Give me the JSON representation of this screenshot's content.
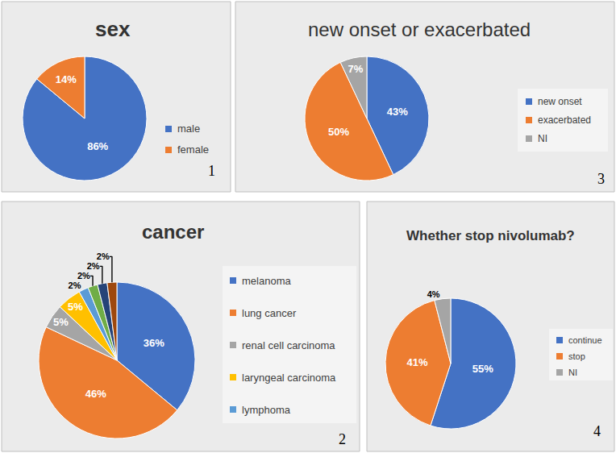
{
  "chart_data": [
    {
      "type": "pie",
      "title": "sex",
      "categories": [
        "male",
        "female"
      ],
      "values": [
        86,
        14
      ],
      "value_labels": [
        "86%",
        "14%"
      ],
      "colors": [
        "#4472c4",
        "#ed7d31"
      ],
      "data_labels": true,
      "legend": "right",
      "annotations": [
        "1"
      ]
    },
    {
      "type": "pie",
      "title": "new onset or exacerbated",
      "categories": [
        "new onset",
        "exacerbated",
        "NI"
      ],
      "values": [
        43,
        50,
        7
      ],
      "value_labels": [
        "43%",
        "50%",
        "7%"
      ],
      "colors": [
        "#4472c4",
        "#ed7d31",
        "#a5a5a5"
      ],
      "data_labels": true,
      "legend": "right",
      "annotations": [
        "3"
      ]
    },
    {
      "type": "pie",
      "title": "cancer",
      "categories": [
        "melanoma",
        "lung cancer",
        "renal cell carcinoma",
        "laryngeal carcinoma",
        "lymphoma",
        null,
        null,
        null
      ],
      "values": [
        36,
        46,
        5,
        5,
        2,
        2,
        2,
        2
      ],
      "value_labels": [
        "36%",
        "46%",
        "5%",
        "5%",
        "2%",
        "2%",
        "2%",
        "2%"
      ],
      "colors": [
        "#4472c4",
        "#ed7d31",
        "#a5a5a5",
        "#ffc000",
        "#5b9bd5",
        "#70ad47",
        "#264478",
        "#9e480e"
      ],
      "data_labels": true,
      "legend": "right",
      "annotations": [
        "2"
      ]
    },
    {
      "type": "pie",
      "title": "Whether stop nivolumab?",
      "categories": [
        "continue",
        "stop",
        "NI"
      ],
      "values": [
        55,
        41,
        4
      ],
      "value_labels": [
        "55%",
        "41%",
        "4%"
      ],
      "colors": [
        "#4472c4",
        "#ed7d31",
        "#a5a5a5"
      ],
      "data_labels": true,
      "legend": "right",
      "annotations": [
        "4"
      ]
    }
  ]
}
